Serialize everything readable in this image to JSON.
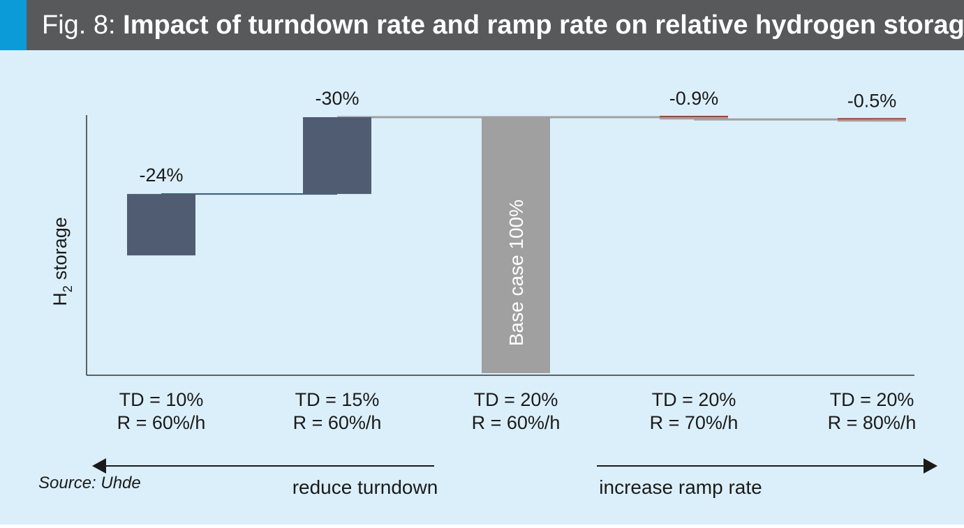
{
  "header": {
    "prefix": "Fig. 8:",
    "title": "Impact of turndown rate and ramp rate on relative hydrogen storage"
  },
  "colors": {
    "header_bg": "#58595b",
    "accent": "#0a9bd8",
    "panel_bg": "#dbeffa",
    "bar_dark": "#505c71",
    "bar_grey": "#a0a0a0",
    "line_red": "#c0392b",
    "line_blue": "#2e5a8a"
  },
  "chart_data": {
    "type": "bar",
    "subtype": "waterfall",
    "ylabel_main": "H",
    "ylabel_sub": "2",
    "ylabel_rest": "storage",
    "base_value": 100,
    "categories": [
      {
        "line1": "TD = 10%",
        "line2": "R = 60%/h"
      },
      {
        "line1": "TD = 15%",
        "line2": "R = 60%/h"
      },
      {
        "line1": "TD = 20%",
        "line2": "R = 60%/h"
      },
      {
        "line1": "TD = 20%",
        "line2": "R = 70%/h"
      },
      {
        "line1": "TD = 20%",
        "line2": "R = 80%/h"
      }
    ],
    "bars": [
      {
        "label": "-24%",
        "from": 70,
        "to": 46,
        "style": "dark"
      },
      {
        "label": "-30%",
        "from": 100,
        "to": 70,
        "style": "dark"
      },
      {
        "label": "Base case 100%",
        "from": 100,
        "to": 0,
        "style": "grey"
      },
      {
        "label": "-0.9%",
        "from": 100,
        "to": 99.1,
        "style": "grey"
      },
      {
        "label": "-0.5%",
        "from": 99.1,
        "to": 98.6,
        "style": "grey"
      }
    ],
    "ylim": [
      0,
      100
    ],
    "grid": false
  },
  "annotations": {
    "left_arrow_label": "reduce turndown",
    "right_arrow_label": "increase ramp rate",
    "source": "Source: Uhde"
  }
}
